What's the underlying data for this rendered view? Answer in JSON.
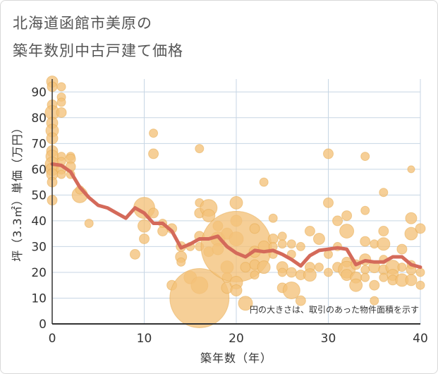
{
  "title_line1": "北海道函館市美原の",
  "title_line2": "築年数別中古戸建て価格",
  "note": "円の大きさは、取引のあった物件面積を示す",
  "colors": {
    "bubble": "#f3c27a",
    "bubble_stroke": "#e6a94e",
    "line": "#d46a5a",
    "grid": "#c7d6e4",
    "axis": "#333333"
  },
  "chart_data": {
    "type": "scatter",
    "xlabel": "築年数（年）",
    "ylabel": "坪（3.3㎡）単価（万円）",
    "xlim": [
      0,
      40
    ],
    "ylim": [
      0,
      95
    ],
    "xticks": [
      "0",
      "10",
      "20",
      "30",
      "40"
    ],
    "yticks": [
      "0",
      "10",
      "20",
      "30",
      "40",
      "50",
      "60",
      "70",
      "80",
      "90"
    ],
    "grid": true,
    "scatter": [
      {
        "x": 0,
        "y": 94,
        "s": 8
      },
      {
        "x": 0,
        "y": 92,
        "s": 7
      },
      {
        "x": 0,
        "y": 85,
        "s": 7
      },
      {
        "x": 0,
        "y": 82,
        "s": 10
      },
      {
        "x": 0,
        "y": 78,
        "s": 8
      },
      {
        "x": 0,
        "y": 75,
        "s": 9
      },
      {
        "x": 0,
        "y": 72,
        "s": 8
      },
      {
        "x": 0,
        "y": 67,
        "s": 8
      },
      {
        "x": 0,
        "y": 65,
        "s": 9
      },
      {
        "x": 0,
        "y": 62,
        "s": 10
      },
      {
        "x": 0,
        "y": 60,
        "s": 9
      },
      {
        "x": 0,
        "y": 58,
        "s": 8
      },
      {
        "x": 0,
        "y": 55,
        "s": 7
      },
      {
        "x": 0,
        "y": 48,
        "s": 7
      },
      {
        "x": 1,
        "y": 92,
        "s": 6
      },
      {
        "x": 1,
        "y": 88,
        "s": 6
      },
      {
        "x": 1,
        "y": 86,
        "s": 6
      },
      {
        "x": 1,
        "y": 82,
        "s": 7
      },
      {
        "x": 1,
        "y": 65,
        "s": 6
      },
      {
        "x": 1,
        "y": 63,
        "s": 6
      },
      {
        "x": 1,
        "y": 60,
        "s": 7
      },
      {
        "x": 1,
        "y": 58,
        "s": 6
      },
      {
        "x": 2,
        "y": 65,
        "s": 6
      },
      {
        "x": 2,
        "y": 64,
        "s": 7
      },
      {
        "x": 2,
        "y": 61,
        "s": 7
      },
      {
        "x": 2,
        "y": 58,
        "s": 6
      },
      {
        "x": 3,
        "y": 50,
        "s": 11
      },
      {
        "x": 3,
        "y": 52,
        "s": 6
      },
      {
        "x": 4,
        "y": 39,
        "s": 6
      },
      {
        "x": 9,
        "y": 27,
        "s": 7
      },
      {
        "x": 10,
        "y": 45,
        "s": 15
      },
      {
        "x": 10,
        "y": 38,
        "s": 9
      },
      {
        "x": 10,
        "y": 33,
        "s": 7
      },
      {
        "x": 11,
        "y": 74,
        "s": 6
      },
      {
        "x": 11,
        "y": 66,
        "s": 7
      },
      {
        "x": 11,
        "y": 43,
        "s": 7
      },
      {
        "x": 12,
        "y": 36,
        "s": 7
      },
      {
        "x": 12,
        "y": 39,
        "s": 6
      },
      {
        "x": 13,
        "y": 37,
        "s": 7
      },
      {
        "x": 13,
        "y": 15,
        "s": 7
      },
      {
        "x": 14,
        "y": 30,
        "s": 7
      },
      {
        "x": 14,
        "y": 26,
        "s": 8
      },
      {
        "x": 14,
        "y": 24,
        "s": 6
      },
      {
        "x": 15,
        "y": 18,
        "s": 9
      },
      {
        "x": 15,
        "y": 30,
        "s": 6
      },
      {
        "x": 16,
        "y": 68,
        "s": 6
      },
      {
        "x": 16,
        "y": 47,
        "s": 6
      },
      {
        "x": 16,
        "y": 43,
        "s": 7
      },
      {
        "x": 16,
        "y": 34,
        "s": 7
      },
      {
        "x": 16,
        "y": 30,
        "s": 6
      },
      {
        "x": 16,
        "y": 15,
        "s": 12
      },
      {
        "x": 16,
        "y": 10,
        "s": 42
      },
      {
        "x": 17,
        "y": 45,
        "s": 12
      },
      {
        "x": 17,
        "y": 42,
        "s": 9
      },
      {
        "x": 17,
        "y": 28,
        "s": 7
      },
      {
        "x": 18,
        "y": 38,
        "s": 7
      },
      {
        "x": 18,
        "y": 33,
        "s": 10
      },
      {
        "x": 18,
        "y": 29,
        "s": 8
      },
      {
        "x": 19,
        "y": 35,
        "s": 8
      },
      {
        "x": 19,
        "y": 22,
        "s": 9
      },
      {
        "x": 19,
        "y": 18,
        "s": 7
      },
      {
        "x": 19,
        "y": 14,
        "s": 8
      },
      {
        "x": 20,
        "y": 47,
        "s": 9
      },
      {
        "x": 20,
        "y": 40,
        "s": 8
      },
      {
        "x": 20,
        "y": 33,
        "s": 10
      },
      {
        "x": 20,
        "y": 30,
        "s": 50
      },
      {
        "x": 20,
        "y": 16,
        "s": 9
      },
      {
        "x": 20,
        "y": 13,
        "s": 8
      },
      {
        "x": 21,
        "y": 22,
        "s": 7
      },
      {
        "x": 21,
        "y": 8,
        "s": 10
      },
      {
        "x": 22,
        "y": 37,
        "s": 7
      },
      {
        "x": 22,
        "y": 28,
        "s": 8
      },
      {
        "x": 22,
        "y": 23,
        "s": 7
      },
      {
        "x": 22,
        "y": 19,
        "s": 6
      },
      {
        "x": 23,
        "y": 55,
        "s": 6
      },
      {
        "x": 23,
        "y": 22,
        "s": 9
      },
      {
        "x": 23,
        "y": 30,
        "s": 8
      },
      {
        "x": 24,
        "y": 41,
        "s": 6
      },
      {
        "x": 24,
        "y": 33,
        "s": 7
      },
      {
        "x": 24,
        "y": 30,
        "s": 6
      },
      {
        "x": 24,
        "y": 27,
        "s": 6
      },
      {
        "x": 25,
        "y": 34,
        "s": 6
      },
      {
        "x": 25,
        "y": 31,
        "s": 6
      },
      {
        "x": 25,
        "y": 22,
        "s": 8
      },
      {
        "x": 25,
        "y": 20,
        "s": 6
      },
      {
        "x": 25,
        "y": 14,
        "s": 7
      },
      {
        "x": 26,
        "y": 31,
        "s": 6
      },
      {
        "x": 26,
        "y": 20,
        "s": 7
      },
      {
        "x": 26,
        "y": 13,
        "s": 12
      },
      {
        "x": 26,
        "y": 27,
        "s": 6
      },
      {
        "x": 27,
        "y": 30,
        "s": 6
      },
      {
        "x": 27,
        "y": 19,
        "s": 7
      },
      {
        "x": 27,
        "y": 9,
        "s": 7
      },
      {
        "x": 28,
        "y": 36,
        "s": 7
      },
      {
        "x": 28,
        "y": 22,
        "s": 7
      },
      {
        "x": 28,
        "y": 19,
        "s": 9
      },
      {
        "x": 29,
        "y": 33,
        "s": 8
      },
      {
        "x": 29,
        "y": 22,
        "s": 6
      },
      {
        "x": 30,
        "y": 66,
        "s": 7
      },
      {
        "x": 30,
        "y": 47,
        "s": 7
      },
      {
        "x": 30,
        "y": 27,
        "s": 6
      },
      {
        "x": 30,
        "y": 20,
        "s": 6
      },
      {
        "x": 31,
        "y": 40,
        "s": 7
      },
      {
        "x": 31,
        "y": 30,
        "s": 6
      },
      {
        "x": 31,
        "y": 22,
        "s": 7
      },
      {
        "x": 32,
        "y": 42,
        "s": 7
      },
      {
        "x": 32,
        "y": 36,
        "s": 10
      },
      {
        "x": 32,
        "y": 24,
        "s": 7
      },
      {
        "x": 32,
        "y": 21,
        "s": 12
      },
      {
        "x": 32,
        "y": 19,
        "s": 8
      },
      {
        "x": 33,
        "y": 23,
        "s": 7
      },
      {
        "x": 33,
        "y": 18,
        "s": 8
      },
      {
        "x": 33,
        "y": 15,
        "s": 9
      },
      {
        "x": 34,
        "y": 65,
        "s": 6
      },
      {
        "x": 34,
        "y": 44,
        "s": 6
      },
      {
        "x": 34,
        "y": 32,
        "s": 7
      },
      {
        "x": 34,
        "y": 25,
        "s": 8
      },
      {
        "x": 34,
        "y": 21,
        "s": 6
      },
      {
        "x": 34,
        "y": 18,
        "s": 6
      },
      {
        "x": 35,
        "y": 31,
        "s": 6
      },
      {
        "x": 35,
        "y": 22,
        "s": 8
      },
      {
        "x": 35,
        "y": 15,
        "s": 7
      },
      {
        "x": 35,
        "y": 9,
        "s": 6
      },
      {
        "x": 36,
        "y": 51,
        "s": 6
      },
      {
        "x": 36,
        "y": 36,
        "s": 7
      },
      {
        "x": 36,
        "y": 31,
        "s": 9
      },
      {
        "x": 36,
        "y": 25,
        "s": 6
      },
      {
        "x": 36,
        "y": 21,
        "s": 7
      },
      {
        "x": 36,
        "y": 18,
        "s": 6
      },
      {
        "x": 37,
        "y": 22,
        "s": 10
      },
      {
        "x": 37,
        "y": 19,
        "s": 8
      },
      {
        "x": 37,
        "y": 17,
        "s": 7
      },
      {
        "x": 38,
        "y": 29,
        "s": 7
      },
      {
        "x": 38,
        "y": 22,
        "s": 6
      },
      {
        "x": 38,
        "y": 17,
        "s": 9
      },
      {
        "x": 39,
        "y": 60,
        "s": 5
      },
      {
        "x": 39,
        "y": 41,
        "s": 8
      },
      {
        "x": 39,
        "y": 35,
        "s": 9
      },
      {
        "x": 39,
        "y": 23,
        "s": 6
      },
      {
        "x": 39,
        "y": 21,
        "s": 7
      },
      {
        "x": 39,
        "y": 17,
        "s": 8
      },
      {
        "x": 40,
        "y": 37,
        "s": 7
      },
      {
        "x": 40,
        "y": 20,
        "s": 6
      },
      {
        "x": 40,
        "y": 15,
        "s": 6
      }
    ],
    "line": [
      [
        0,
        62
      ],
      [
        1,
        61.5
      ],
      [
        2,
        59
      ],
      [
        3,
        53
      ],
      [
        4,
        49
      ],
      [
        5,
        46
      ],
      [
        6,
        45
      ],
      [
        7,
        43
      ],
      [
        8,
        41
      ],
      [
        9,
        45
      ],
      [
        10,
        43
      ],
      [
        11,
        39
      ],
      [
        12,
        39
      ],
      [
        13,
        36
      ],
      [
        14,
        29.5
      ],
      [
        15,
        31
      ],
      [
        16,
        33
      ],
      [
        17,
        33
      ],
      [
        18,
        34
      ],
      [
        19,
        30
      ],
      [
        20,
        27.5
      ],
      [
        21,
        26
      ],
      [
        22,
        28.5
      ],
      [
        23,
        28
      ],
      [
        24,
        28.5
      ],
      [
        25,
        27
      ],
      [
        26,
        25
      ],
      [
        27,
        22.5
      ],
      [
        28,
        26.5
      ],
      [
        29,
        28.5
      ],
      [
        30,
        29
      ],
      [
        31,
        29.5
      ],
      [
        32,
        29
      ],
      [
        33,
        23
      ],
      [
        34,
        24.5
      ],
      [
        35,
        24
      ],
      [
        36,
        24
      ],
      [
        37,
        26
      ],
      [
        38,
        26
      ],
      [
        39,
        23
      ],
      [
        40,
        22
      ]
    ]
  }
}
